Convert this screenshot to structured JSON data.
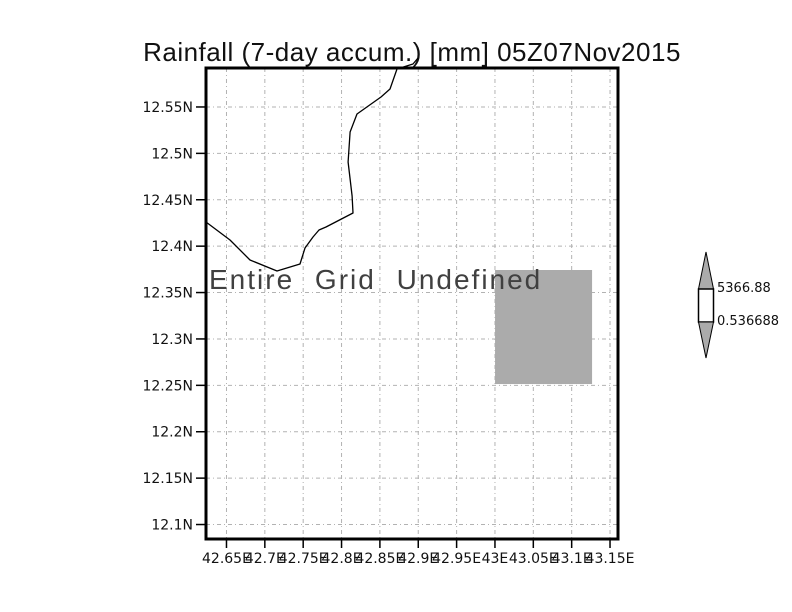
{
  "chart_data": {
    "type": "map",
    "title": "Rainfall (7-day accum.) [mm] 05Z07Nov2015",
    "overlay_message": "Entire Grid Undefined",
    "axes": {
      "lon_range": [
        42.6233,
        43.1604
      ],
      "lat_range": [
        12.0844,
        12.592
      ],
      "grid": true,
      "lon_ticks": {
        "values": [
          42.65,
          42.7,
          42.75,
          42.8,
          42.85,
          42.9,
          42.95,
          43.0,
          43.05,
          43.1,
          43.15
        ],
        "labels": [
          "42.65E",
          "42.7E",
          "42.75E",
          "42.8E",
          "42.85E",
          "42.9E",
          "42.95E",
          "43E",
          "43.05E",
          "43.1E",
          "43.15E"
        ]
      },
      "lat_ticks": {
        "values": [
          12.55,
          12.5,
          12.45,
          12.4,
          12.35,
          12.3,
          12.25,
          12.2,
          12.15,
          12.1
        ],
        "labels": [
          "12.55N",
          "12.5N",
          "12.45N",
          "12.4N",
          "12.35N",
          "12.3N",
          "12.25N",
          "12.2N",
          "12.15N",
          "12.1N"
        ]
      }
    },
    "coastline_lonlat": [
      [
        42.8997,
        12.6028
      ],
      [
        42.8932,
        12.5963
      ],
      [
        42.8723,
        12.5909
      ],
      [
        42.8632,
        12.5694
      ],
      [
        42.8515,
        12.5607
      ],
      [
        42.8202,
        12.5424
      ],
      [
        42.8111,
        12.523
      ],
      [
        42.8085,
        12.4907
      ],
      [
        42.8137,
        12.454
      ],
      [
        42.815,
        12.4357
      ],
      [
        42.7798,
        12.4206
      ],
      [
        42.7706,
        12.4174
      ],
      [
        42.7628,
        12.4099
      ],
      [
        42.7524,
        12.398
      ],
      [
        42.7459,
        12.3808
      ],
      [
        42.7159,
        12.3732
      ],
      [
        42.6807,
        12.3851
      ],
      [
        42.6546,
        12.4066
      ],
      [
        42.6233,
        12.426
      ]
    ],
    "undefined_cell": {
      "lon_min": 43.0001,
      "lon_max": 43.1266,
      "lat_min": 12.2514,
      "lat_max": 12.3743,
      "fill": "#ababab"
    },
    "colorbar": {
      "max_label": "5366.88",
      "min_label": "0.536688",
      "triangle_fill": "#ababab",
      "box_fill": "#ffffff",
      "outline": "#000000"
    },
    "colors": {
      "frame": "#000000",
      "coastline": "#000000",
      "gridline": "#b2b2b2",
      "tick": "#000000",
      "tick_label": "#111111"
    }
  }
}
